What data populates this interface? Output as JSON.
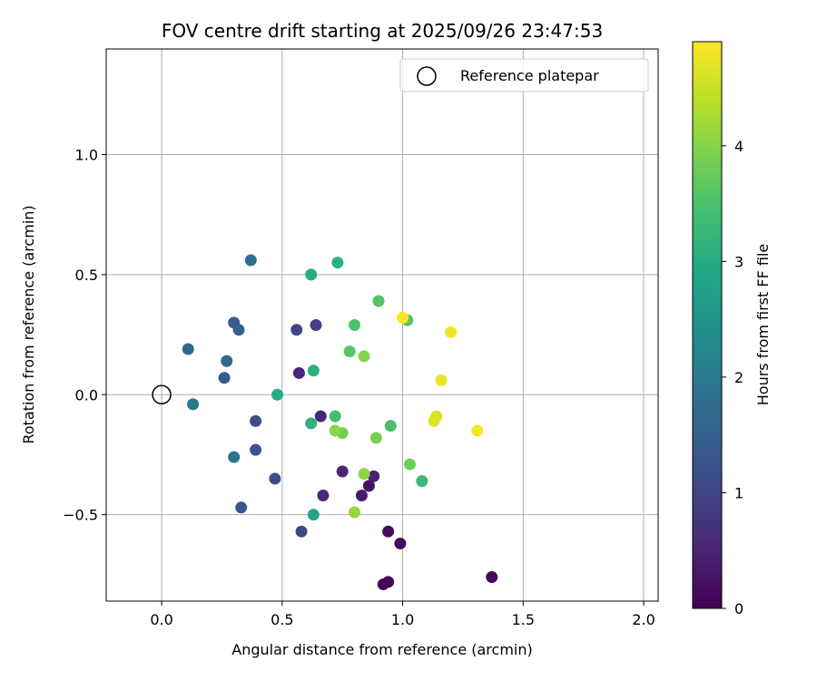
{
  "chart_data": {
    "type": "scatter",
    "title": "FOV centre drift starting at 2025/09/26 23:47:53",
    "xlabel": "Angular distance from reference (arcmin)",
    "ylabel": "Rotation from reference (arcmin)",
    "xlim": [
      -0.23,
      2.06
    ],
    "ylim": [
      -0.86,
      1.44
    ],
    "xticks": [
      0.0,
      0.5,
      1.0,
      1.5,
      2.0
    ],
    "xtick_labels": [
      "0.0",
      "0.5",
      "1.0",
      "1.5",
      "2.0"
    ],
    "yticks": [
      -0.5,
      0.0,
      0.5,
      1.0
    ],
    "ytick_labels": [
      "−0.5",
      "0.0",
      "0.5",
      "1.0"
    ],
    "grid": true,
    "legend": {
      "position": "top-right",
      "entries": [
        "Reference platepar"
      ]
    },
    "reference_point": {
      "x": 0.0,
      "y": 0.0,
      "label": "Reference platepar"
    },
    "colorbar": {
      "label": "Hours from first FF file",
      "range": [
        0,
        4.9
      ],
      "ticks": [
        0,
        1,
        2,
        3,
        4
      ],
      "tick_labels": [
        "0",
        "1",
        "2",
        "3",
        "4"
      ],
      "colormap": "viridis"
    },
    "points": [
      {
        "x": 0.92,
        "y": -0.79,
        "t": 0.05
      },
      {
        "x": 0.94,
        "y": -0.78,
        "t": 0.1
      },
      {
        "x": 1.37,
        "y": -0.76,
        "t": 0.1
      },
      {
        "x": 0.94,
        "y": -0.57,
        "t": 0.15
      },
      {
        "x": 0.99,
        "y": -0.62,
        "t": 0.15
      },
      {
        "x": 0.86,
        "y": -0.38,
        "t": 0.25
      },
      {
        "x": 0.83,
        "y": -0.42,
        "t": 0.4
      },
      {
        "x": 0.88,
        "y": -0.34,
        "t": 0.45
      },
      {
        "x": 0.75,
        "y": -0.32,
        "t": 0.55
      },
      {
        "x": 0.67,
        "y": -0.42,
        "t": 0.55
      },
      {
        "x": 0.66,
        "y": -0.09,
        "t": 0.5
      },
      {
        "x": 0.57,
        "y": 0.09,
        "t": 0.55
      },
      {
        "x": 0.64,
        "y": 0.29,
        "t": 0.9
      },
      {
        "x": 0.56,
        "y": 0.27,
        "t": 1.0
      },
      {
        "x": 0.58,
        "y": -0.57,
        "t": 1.05
      },
      {
        "x": 0.47,
        "y": -0.35,
        "t": 1.15
      },
      {
        "x": 0.39,
        "y": -0.11,
        "t": 1.15
      },
      {
        "x": 0.39,
        "y": -0.23,
        "t": 1.25
      },
      {
        "x": 0.33,
        "y": -0.47,
        "t": 1.35
      },
      {
        "x": 0.26,
        "y": 0.07,
        "t": 1.4
      },
      {
        "x": 0.3,
        "y": 0.3,
        "t": 1.4
      },
      {
        "x": 0.32,
        "y": 0.27,
        "t": 1.5
      },
      {
        "x": 0.27,
        "y": 0.14,
        "t": 1.65
      },
      {
        "x": 0.11,
        "y": 0.19,
        "t": 1.7
      },
      {
        "x": 0.37,
        "y": 0.56,
        "t": 1.85
      },
      {
        "x": 0.3,
        "y": -0.26,
        "t": 1.9
      },
      {
        "x": 0.13,
        "y": -0.04,
        "t": 2.0
      },
      {
        "x": 0.63,
        "y": -0.5,
        "t": 2.85
      },
      {
        "x": 0.48,
        "y": 0.0,
        "t": 3.0
      },
      {
        "x": 0.62,
        "y": 0.5,
        "t": 3.05
      },
      {
        "x": 0.73,
        "y": 0.55,
        "t": 3.1
      },
      {
        "x": 0.63,
        "y": 0.1,
        "t": 3.1
      },
      {
        "x": 0.62,
        "y": -0.12,
        "t": 3.15
      },
      {
        "x": 1.08,
        "y": -0.36,
        "t": 3.3
      },
      {
        "x": 0.72,
        "y": -0.09,
        "t": 3.4
      },
      {
        "x": 0.95,
        "y": -0.13,
        "t": 3.45
      },
      {
        "x": 0.8,
        "y": 0.29,
        "t": 3.5
      },
      {
        "x": 0.9,
        "y": 0.39,
        "t": 3.55
      },
      {
        "x": 0.78,
        "y": 0.18,
        "t": 3.6
      },
      {
        "x": 1.02,
        "y": 0.31,
        "t": 3.6
      },
      {
        "x": 1.03,
        "y": -0.29,
        "t": 3.8
      },
      {
        "x": 0.75,
        "y": -0.16,
        "t": 3.85
      },
      {
        "x": 0.89,
        "y": -0.18,
        "t": 3.9
      },
      {
        "x": 0.84,
        "y": 0.16,
        "t": 4.0
      },
      {
        "x": 0.72,
        "y": -0.15,
        "t": 4.05
      },
      {
        "x": 0.84,
        "y": -0.33,
        "t": 4.05
      },
      {
        "x": 0.8,
        "y": -0.49,
        "t": 4.1
      },
      {
        "x": 1.14,
        "y": -0.09,
        "t": 4.6
      },
      {
        "x": 1.13,
        "y": -0.11,
        "t": 4.65
      },
      {
        "x": 1.16,
        "y": 0.06,
        "t": 4.75
      },
      {
        "x": 1.2,
        "y": 0.26,
        "t": 4.8
      },
      {
        "x": 1.31,
        "y": -0.15,
        "t": 4.85
      },
      {
        "x": 1.0,
        "y": 0.32,
        "t": 4.9
      }
    ]
  }
}
